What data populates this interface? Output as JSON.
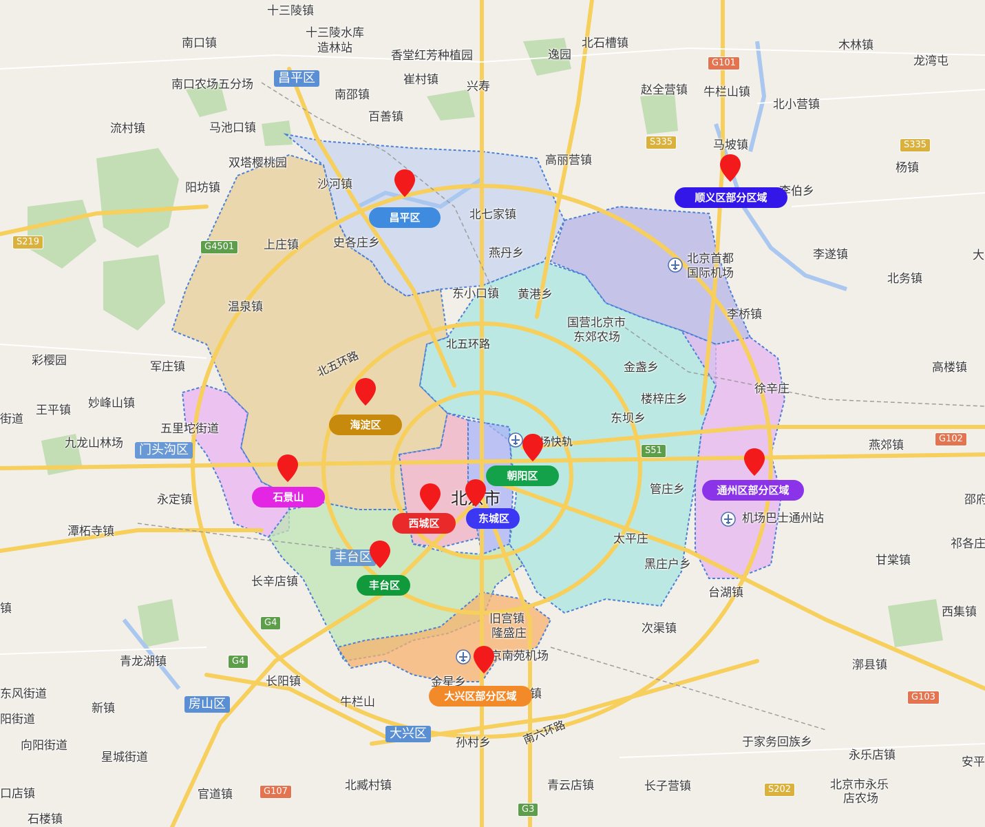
{
  "colors": {
    "changping": "#c8d6ef",
    "haidian": "#e8cf9a",
    "shunyi": "#b7b4e8",
    "chaoyang": "#a8e6df",
    "tongzhou": "#e6b5f0",
    "shijingshan": "#e9b3f2",
    "fengtai": "#bfe6b4",
    "xicheng": "#f0b0c4",
    "dongcheng": "#aab3f5",
    "daxing": "#f7b26e",
    "pin": "#f21a1a"
  },
  "markers": [
    {
      "label": "昌平区",
      "color": "#3f8be0"
    },
    {
      "label": "顺义区部分区域",
      "color": "#3316e8"
    },
    {
      "label": "海淀区",
      "color": "#c88a0c"
    },
    {
      "label": "朝阳区",
      "color": "#13a24a"
    },
    {
      "label": "石景山",
      "color": "#e326e4"
    },
    {
      "label": "西城区",
      "color": "#ea2a2a"
    },
    {
      "label": "东城区",
      "color": "#3c37f2"
    },
    {
      "label": "通州区部分区域",
      "color": "#8a33e8"
    },
    {
      "label": "丰台区",
      "color": "#109a3c"
    },
    {
      "label": "大兴区部分区域",
      "color": "#f38a2a"
    }
  ],
  "district_tags": {
    "changping": "昌平区",
    "mentougou": "门头沟区",
    "fengtai": "丰台区",
    "fangshan": "房山区",
    "daxing": "大兴区"
  },
  "city_label": "北京市",
  "road_shields": [
    "G101",
    "S335",
    "S335",
    "S219",
    "G4501",
    "G102",
    "S51",
    "G4",
    "G4",
    "G107",
    "G103",
    "S202",
    "G3"
  ],
  "road_names": [
    "北五环路",
    "北五环路",
    "南六环路",
    "场快轨"
  ],
  "places": [
    "十三陵镇",
    "十三陵水库",
    "造林站",
    "南口镇",
    "香堂红芳种植园",
    "逸园",
    "北石槽镇",
    "木林镇",
    "龙湾屯",
    "南口农场五分场",
    "崔村镇",
    "兴寿",
    "赵全营镇",
    "牛栏山镇",
    "南邵镇",
    "北小营镇",
    "流村镇",
    "马池口镇",
    "百善镇",
    "马坡镇",
    "双塔樱桃园",
    "高丽营镇",
    "杨镇",
    "阳坊镇",
    "沙河镇",
    "李伯乡",
    "北七家镇",
    "上庄镇",
    "史各庄乡",
    "燕丹乡",
    "北京首都",
    "国际机场",
    "李遂镇",
    "北务镇",
    "温泉镇",
    "东小口镇",
    "黄港乡",
    "李桥镇",
    "国营北京市",
    "东郊农场",
    "彩樱园",
    "军庄镇",
    "金盏乡",
    "高楼镇",
    "徐辛庄",
    "王平镇",
    "妙峰山镇",
    "楼梓庄乡",
    "街道",
    "五里坨街道",
    "东坝乡",
    "九龙山林场",
    "燕郊镇",
    "管庄乡",
    "永定镇",
    "机场巴士通州站",
    "邵府",
    "潭柘寺镇",
    "太平庄",
    "祁各庄",
    "长辛店镇",
    "黑庄户乡",
    "甘棠镇",
    "台湖镇",
    "西集镇",
    "旧宫镇",
    "隆盛庄",
    "次渠镇",
    "京南苑机场",
    "青龙湖镇",
    "漷县镇",
    "东风街道",
    "长阳镇",
    "金星乡",
    "镇",
    "新镇",
    "牛栏山",
    "阳街道",
    "孙村乡",
    "于家务回族乡",
    "向阳街道",
    "永乐店镇",
    "安平",
    "星城街道",
    "北京市永乐",
    "店农场",
    "口店镇",
    "官道镇",
    "北臧村镇",
    "青云店镇",
    "长子营镇",
    "石楼镇",
    "大",
    "镇"
  ]
}
